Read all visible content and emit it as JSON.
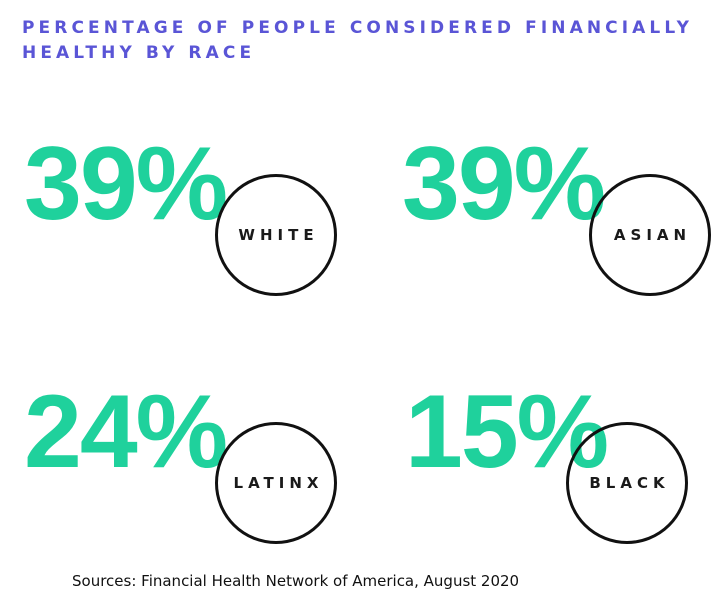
{
  "title": "PERCENTAGE OF PEOPLE CONSIDERED FINANCIALLY HEALTHY BY RACE",
  "colors": {
    "title": "#5a55d6",
    "percent": "#1fd19c",
    "circle_border": "#111111",
    "text": "#111111"
  },
  "chart_data": {
    "type": "table",
    "title": "PERCENTAGE OF PEOPLE CONSIDERED FINANCIALLY HEALTHY BY RACE",
    "unit": "%",
    "categories": [
      "WHITE",
      "ASIAN",
      "LATINX",
      "BLACK"
    ],
    "values": [
      39,
      39,
      24,
      15
    ],
    "items": [
      {
        "label": "WHITE",
        "value": 39,
        "display": "39%"
      },
      {
        "label": "ASIAN",
        "value": 39,
        "display": "39%"
      },
      {
        "label": "LATINX",
        "value": 24,
        "display": "24%"
      },
      {
        "label": "BLACK",
        "value": 15,
        "display": "15%"
      }
    ]
  },
  "source": "Sources: Financial Health Network of America, August 2020"
}
